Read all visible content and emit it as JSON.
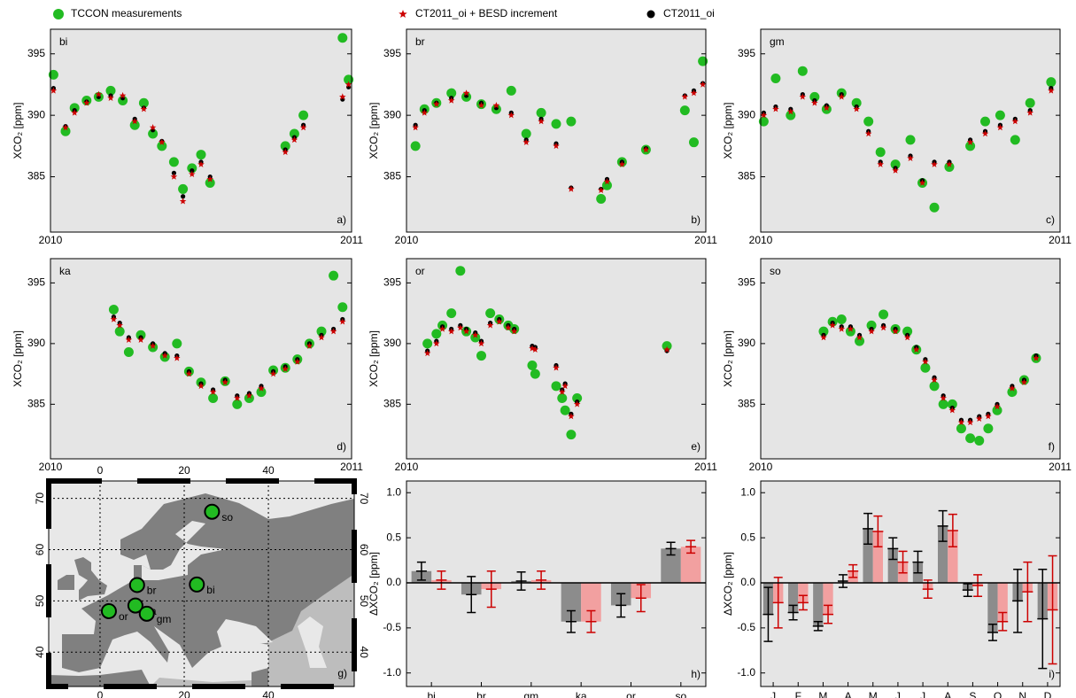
{
  "chart_data": [
    {
      "type": "scatter",
      "label": "bi",
      "panel": "a)",
      "ylabel": "XCO₂ [ppm]",
      "xlim": [
        2010,
        2011
      ],
      "xticks": [
        2010,
        2011
      ],
      "ylim": [
        380.5,
        397
      ],
      "yticks": [
        385,
        390,
        395
      ],
      "x": [
        2010.01,
        2010.05,
        2010.08,
        2010.12,
        2010.16,
        2010.2,
        2010.24,
        2010.28,
        2010.31,
        2010.34,
        2010.37,
        2010.41,
        2010.44,
        2010.47,
        2010.5,
        2010.53,
        2010.78,
        2010.81,
        2010.84,
        2010.97,
        2010.99
      ],
      "series": [
        {
          "name": "TCCON measurements",
          "color": "#22bb22",
          "marker": "circle",
          "values": [
            393.3,
            388.7,
            390.6,
            391.2,
            391.5,
            392.0,
            391.2,
            389.2,
            391.0,
            388.5,
            387.5,
            386.2,
            384.0,
            385.7,
            386.8,
            384.5,
            387.5,
            388.5,
            390.0,
            396.3,
            392.9
          ]
        },
        {
          "name": "CT2011_oi + BESD increment",
          "color": "#cc0000",
          "marker": "star",
          "values": [
            392.0,
            389.0,
            390.2,
            391.0,
            391.7,
            391.4,
            391.6,
            389.5,
            390.5,
            389.0,
            387.8,
            385.0,
            383.0,
            385.2,
            386.0,
            384.8,
            387.0,
            388.0,
            389.0,
            391.5,
            392.5
          ]
        },
        {
          "name": "CT2011_oi",
          "color": "#000000",
          "marker": "dot",
          "values": [
            392.2,
            389.1,
            390.4,
            391.1,
            391.5,
            391.6,
            391.4,
            389.7,
            390.6,
            388.8,
            387.9,
            385.3,
            383.4,
            385.5,
            386.2,
            385.0,
            387.2,
            388.2,
            389.2,
            391.3,
            392.3
          ]
        }
      ]
    },
    {
      "type": "scatter",
      "label": "br",
      "panel": "b)",
      "ylabel": "XCO₂ [ppm]",
      "xlim": [
        2010,
        2011
      ],
      "xticks": [
        2010,
        2011
      ],
      "ylim": [
        380.5,
        397
      ],
      "yticks": [
        385,
        390,
        395
      ],
      "x": [
        2010.03,
        2010.06,
        2010.1,
        2010.15,
        2010.2,
        2010.25,
        2010.3,
        2010.35,
        2010.4,
        2010.45,
        2010.5,
        2010.55,
        2010.65,
        2010.67,
        2010.72,
        2010.8,
        2010.93,
        2010.96,
        2010.99
      ],
      "series": [
        {
          "color": "#22bb22",
          "marker": "circle",
          "values": [
            387.5,
            390.5,
            391.0,
            391.8,
            391.5,
            390.9,
            390.5,
            392.0,
            388.5,
            390.2,
            389.3,
            389.5,
            383.2,
            384.3,
            386.2,
            387.2,
            390.4,
            387.8,
            394.4
          ]
        },
        {
          "color": "#cc0000",
          "marker": "star",
          "values": [
            389.0,
            390.2,
            390.9,
            391.2,
            391.8,
            390.8,
            390.8,
            390.0,
            387.8,
            389.5,
            387.5,
            384.0,
            383.9,
            384.6,
            386.0,
            387.2,
            391.5,
            391.8,
            392.5
          ]
        },
        {
          "color": "#000000",
          "marker": "dot",
          "values": [
            389.2,
            390.4,
            391.0,
            391.4,
            391.6,
            391.0,
            390.6,
            390.2,
            388.0,
            389.7,
            387.7,
            384.1,
            384.0,
            384.8,
            386.2,
            387.3,
            391.6,
            392.0,
            392.6
          ]
        }
      ]
    },
    {
      "type": "scatter",
      "label": "gm",
      "panel": "c)",
      "ylabel": "XCO₂ [ppm]",
      "xlim": [
        2010,
        2011
      ],
      "xticks": [
        2010,
        2011
      ],
      "ylim": [
        380.5,
        397
      ],
      "yticks": [
        385,
        390,
        395
      ],
      "x": [
        2010.01,
        2010.05,
        2010.1,
        2010.14,
        2010.18,
        2010.22,
        2010.27,
        2010.32,
        2010.36,
        2010.4,
        2010.45,
        2010.5,
        2010.54,
        2010.58,
        2010.63,
        2010.7,
        2010.75,
        2010.8,
        2010.85,
        2010.9,
        2010.97
      ],
      "series": [
        {
          "color": "#22bb22",
          "marker": "circle",
          "values": [
            389.5,
            393.0,
            390.0,
            393.6,
            391.5,
            390.5,
            391.8,
            391.0,
            389.5,
            387.0,
            386.0,
            388.0,
            384.5,
            382.5,
            385.8,
            387.5,
            389.5,
            390.0,
            388.0,
            391.0,
            392.7
          ]
        },
        {
          "color": "#cc0000",
          "marker": "star",
          "values": [
            390.0,
            390.5,
            390.3,
            391.5,
            391.0,
            390.6,
            391.5,
            390.5,
            388.5,
            386.0,
            385.5,
            386.5,
            384.5,
            386.0,
            386.0,
            387.8,
            388.5,
            389.0,
            389.5,
            390.2,
            392.0
          ]
        },
        {
          "color": "#000000",
          "marker": "dot",
          "values": [
            390.2,
            390.7,
            390.5,
            391.7,
            391.2,
            390.8,
            391.7,
            390.7,
            388.7,
            386.2,
            385.7,
            386.7,
            384.7,
            386.2,
            386.2,
            388.0,
            388.7,
            389.2,
            389.7,
            390.4,
            392.2
          ]
        }
      ]
    },
    {
      "type": "scatter",
      "label": "ka",
      "panel": "d)",
      "ylabel": "XCO₂ [ppm]",
      "xlim": [
        2010,
        2011
      ],
      "xticks": [
        2010,
        2011
      ],
      "ylim": [
        380.5,
        397
      ],
      "yticks": [
        385,
        390,
        395
      ],
      "x": [
        2010.21,
        2010.23,
        2010.26,
        2010.3,
        2010.34,
        2010.38,
        2010.42,
        2010.46,
        2010.5,
        2010.54,
        2010.58,
        2010.62,
        2010.66,
        2010.7,
        2010.74,
        2010.78,
        2010.82,
        2010.86,
        2010.9,
        2010.94,
        2010.97
      ],
      "series": [
        {
          "color": "#22bb22",
          "marker": "circle",
          "values": [
            392.8,
            391.0,
            389.3,
            390.7,
            389.7,
            388.9,
            390.0,
            387.7,
            386.8,
            385.5,
            386.9,
            385.0,
            385.5,
            386.0,
            387.8,
            388.0,
            388.7,
            390.0,
            391.0,
            395.6,
            393.0
          ]
        },
        {
          "color": "#cc0000",
          "marker": "star",
          "values": [
            392.0,
            391.5,
            390.3,
            390.3,
            389.8,
            389.0,
            388.8,
            387.5,
            386.5,
            386.0,
            386.8,
            385.5,
            385.7,
            386.3,
            387.5,
            387.9,
            388.5,
            389.8,
            390.5,
            391.0,
            391.8
          ]
        },
        {
          "color": "#000000",
          "marker": "dot",
          "values": [
            392.2,
            391.7,
            390.5,
            390.5,
            390.0,
            389.2,
            389.0,
            387.7,
            386.7,
            386.2,
            387.0,
            385.7,
            385.9,
            386.5,
            387.7,
            388.1,
            388.7,
            390.0,
            390.7,
            391.2,
            392.0
          ]
        }
      ]
    },
    {
      "type": "scatter",
      "label": "or",
      "panel": "e)",
      "ylabel": "XCO₂ [ppm]",
      "xlim": [
        2010,
        2011
      ],
      "xticks": [
        2010,
        2011
      ],
      "ylim": [
        380.5,
        397
      ],
      "yticks": [
        385,
        390,
        395
      ],
      "x": [
        2010.07,
        2010.1,
        2010.12,
        2010.15,
        2010.18,
        2010.2,
        2010.23,
        2010.25,
        2010.28,
        2010.31,
        2010.34,
        2010.36,
        2010.42,
        2010.43,
        2010.5,
        2010.52,
        2010.53,
        2010.55,
        2010.57,
        2010.87
      ],
      "series": [
        {
          "color": "#22bb22",
          "marker": "circle",
          "values": [
            390.0,
            390.8,
            391.5,
            392.5,
            396.0,
            391.0,
            390.5,
            389.0,
            392.5,
            392.0,
            391.5,
            391.2,
            388.2,
            387.5,
            386.5,
            385.5,
            384.5,
            382.5,
            385.5,
            389.8
          ]
        },
        {
          "color": "#cc0000",
          "marker": "star",
          "values": [
            389.2,
            390.0,
            391.2,
            391.0,
            391.3,
            391.0,
            390.7,
            390.0,
            391.5,
            391.8,
            391.3,
            391.0,
            389.6,
            389.5,
            388.0,
            386.0,
            386.5,
            384.0,
            385.0,
            389.5
          ]
        },
        {
          "color": "#000000",
          "marker": "dot",
          "values": [
            389.4,
            390.2,
            391.4,
            391.2,
            391.5,
            391.2,
            390.9,
            390.2,
            391.7,
            392.0,
            391.5,
            391.2,
            389.8,
            389.7,
            388.2,
            386.2,
            386.7,
            384.2,
            385.2,
            389.4
          ]
        }
      ]
    },
    {
      "type": "scatter",
      "label": "so",
      "panel": "f)",
      "ylabel": "XCO₂ [ppm]",
      "xlim": [
        2010,
        2011
      ],
      "xticks": [
        2010,
        2011
      ],
      "ylim": [
        380.5,
        397
      ],
      "yticks": [
        385,
        390,
        395
      ],
      "x": [
        2010.21,
        2010.24,
        2010.27,
        2010.3,
        2010.33,
        2010.37,
        2010.41,
        2010.45,
        2010.49,
        2010.52,
        2010.55,
        2010.58,
        2010.61,
        2010.64,
        2010.67,
        2010.7,
        2010.73,
        2010.76,
        2010.79,
        2010.84,
        2010.88,
        2010.92
      ],
      "series": [
        {
          "color": "#22bb22",
          "marker": "circle",
          "values": [
            391.0,
            391.8,
            392.0,
            391.0,
            390.2,
            391.5,
            392.4,
            391.2,
            391.0,
            389.5,
            388.0,
            386.5,
            385.0,
            385.0,
            383.0,
            382.2,
            382.0,
            383.0,
            384.5,
            386.0,
            387.0,
            388.8
          ]
        },
        {
          "color": "#cc0000",
          "marker": "star",
          "values": [
            390.5,
            391.5,
            391.2,
            391.2,
            390.5,
            391.0,
            391.3,
            391.0,
            390.5,
            389.5,
            388.5,
            387.0,
            385.5,
            384.5,
            383.5,
            383.5,
            383.8,
            384.0,
            384.8,
            386.3,
            386.8,
            388.8
          ]
        },
        {
          "color": "#000000",
          "marker": "dot",
          "values": [
            390.7,
            391.7,
            391.4,
            391.4,
            390.7,
            391.2,
            391.5,
            391.2,
            390.7,
            389.7,
            388.7,
            387.2,
            385.7,
            384.7,
            383.7,
            383.7,
            384.0,
            384.2,
            385.0,
            386.5,
            387.0,
            389.0
          ]
        }
      ]
    },
    {
      "type": "map",
      "panel": "g)",
      "color": "#22bb22",
      "xlim": [
        -12.2,
        60.4
      ],
      "ylim": [
        33.3,
        73.4
      ],
      "xticks": [
        0,
        20,
        40
      ],
      "yticks": [
        40,
        50,
        60,
        70
      ],
      "categories": [
        "so",
        "bi",
        "br",
        "ka",
        "gm",
        "or"
      ],
      "x": [
        26.6,
        23.0,
        8.8,
        8.4,
        11.1,
        2.1
      ],
      "values": [
        67.4,
        53.2,
        53.1,
        49.1,
        47.5,
        48.0
      ]
    },
    {
      "type": "bar",
      "panel": "h)",
      "ylabel": "ΔXCO₂ [ppm]",
      "ylim": [
        -1.15,
        1.13
      ],
      "yticks": [
        {
          "value": -1,
          "label": "-1.0"
        },
        -0.5,
        {
          "value": 0,
          "label": "0.0"
        },
        0.5,
        {
          "value": 1,
          "label": "1.0"
        }
      ],
      "categories": [
        "bi",
        "br",
        "gm",
        "ka",
        "or",
        "so"
      ],
      "series": [
        {
          "color": "#8c8c8c",
          "error_color": "#000000",
          "values": [
            0.13,
            -0.13,
            0.02,
            -0.43,
            -0.25,
            0.38
          ],
          "errors": [
            0.1,
            0.2,
            0.1,
            0.12,
            0.13,
            0.07
          ]
        },
        {
          "color": "#f2a0a0",
          "error_color": "#cc0000",
          "values": [
            0.03,
            -0.07,
            0.03,
            -0.43,
            -0.17,
            0.4
          ],
          "errors": [
            0.1,
            0.2,
            0.1,
            0.12,
            0.15,
            0.07
          ]
        }
      ]
    },
    {
      "type": "bar",
      "panel": "i)",
      "ylabel": "ΔXCO₂ [ppm]",
      "ylim": [
        -1.15,
        1.13
      ],
      "yticks": [
        {
          "value": -1,
          "label": "-1.0"
        },
        -0.5,
        {
          "value": 0,
          "label": "0.0"
        },
        0.5,
        {
          "value": 1,
          "label": "1.0"
        }
      ],
      "categories": [
        "J",
        "F",
        "M",
        "A",
        "M",
        "J",
        "J",
        "A",
        "S",
        "O",
        "N",
        "D"
      ],
      "series": [
        {
          "color": "#8c8c8c",
          "error_color": "#000000",
          "values": [
            -0.35,
            -0.33,
            -0.48,
            0.02,
            0.6,
            0.38,
            0.23,
            0.63,
            -0.08,
            -0.55,
            -0.2,
            -0.4
          ],
          "errors": [
            0.3,
            0.08,
            0.05,
            0.07,
            0.17,
            0.12,
            0.12,
            0.17,
            0.07,
            0.09,
            0.35,
            0.55
          ]
        },
        {
          "color": "#f2a0a0",
          "error_color": "#cc0000",
          "values": [
            -0.22,
            -0.22,
            -0.35,
            0.13,
            0.57,
            0.23,
            -0.07,
            0.58,
            -0.03,
            -0.43,
            -0.1,
            -0.3
          ],
          "errors": [
            0.28,
            0.08,
            0.1,
            0.07,
            0.17,
            0.12,
            0.1,
            0.18,
            0.12,
            0.1,
            0.33,
            0.6
          ]
        }
      ]
    }
  ]
}
